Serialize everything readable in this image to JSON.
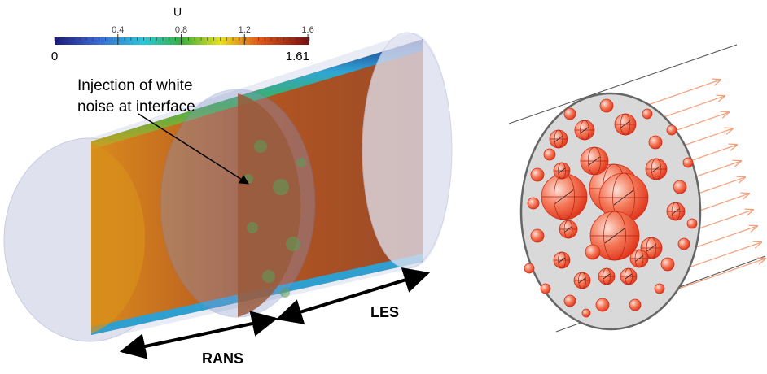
{
  "colorbar": {
    "title": "U",
    "min": 0,
    "max": 1.61,
    "ticks": [
      0.4,
      0.8,
      1.2,
      1.6
    ]
  },
  "annotation": {
    "lines": [
      "Injection of white",
      "noise at interface"
    ]
  },
  "labels": {
    "rans": "RANS",
    "les": "LES"
  }
}
